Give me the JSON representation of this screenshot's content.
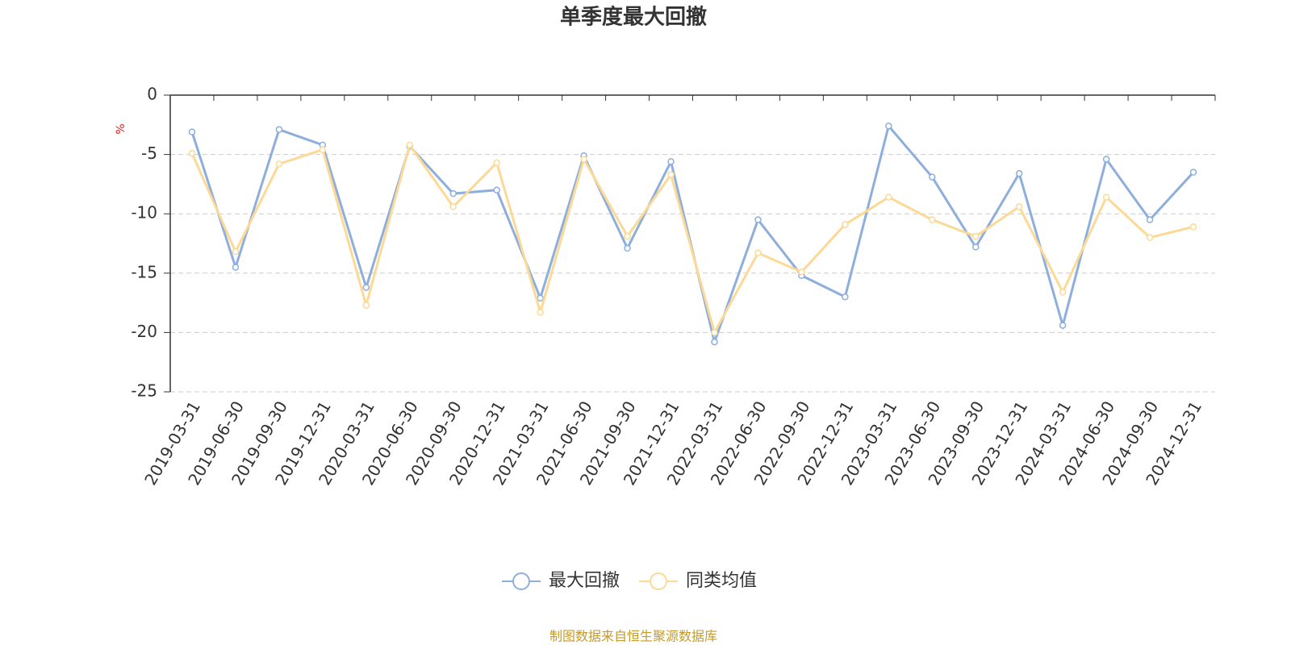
{
  "chart_data": {
    "type": "line",
    "title": "单季度最大回撤",
    "y_label": "%",
    "source": "制图数据来自恒生聚源数据库",
    "categories": [
      "2019-03-31",
      "2019-06-30",
      "2019-09-30",
      "2019-12-31",
      "2020-03-31",
      "2020-06-30",
      "2020-09-30",
      "2020-12-31",
      "2021-03-31",
      "2021-06-30",
      "2021-09-30",
      "2021-12-31",
      "2022-03-31",
      "2022-06-30",
      "2022-09-30",
      "2022-12-31",
      "2023-03-31",
      "2023-06-30",
      "2023-09-30",
      "2023-12-31",
      "2024-03-31",
      "2024-06-30",
      "2024-09-30",
      "2024-12-31"
    ],
    "series": [
      {
        "name": "最大回撤",
        "color": "#8eaedb",
        "values": [
          -3.1,
          -14.5,
          -2.9,
          -4.2,
          -16.2,
          -4.3,
          -8.3,
          -8.0,
          -17.1,
          -5.1,
          -12.9,
          -5.6,
          -20.8,
          -10.5,
          -15.2,
          -17.0,
          -2.6,
          -6.9,
          -12.8,
          -6.6,
          -19.4,
          -5.4,
          -10.5,
          -6.5
        ]
      },
      {
        "name": "同类均值",
        "color": "#fcd995",
        "values": [
          -4.9,
          -13.2,
          -5.8,
          -4.6,
          -17.7,
          -4.2,
          -9.4,
          -5.7,
          -18.3,
          -5.4,
          -11.9,
          -6.7,
          -20.0,
          -13.3,
          -14.9,
          -10.9,
          -8.6,
          -10.5,
          -11.9,
          -9.4,
          -16.6,
          -8.6,
          -12.0,
          -11.1
        ]
      }
    ],
    "ylim": [
      0,
      -25
    ],
    "yticks": [
      0,
      -5,
      -10,
      -15,
      -20,
      -25
    ],
    "grid": true
  }
}
